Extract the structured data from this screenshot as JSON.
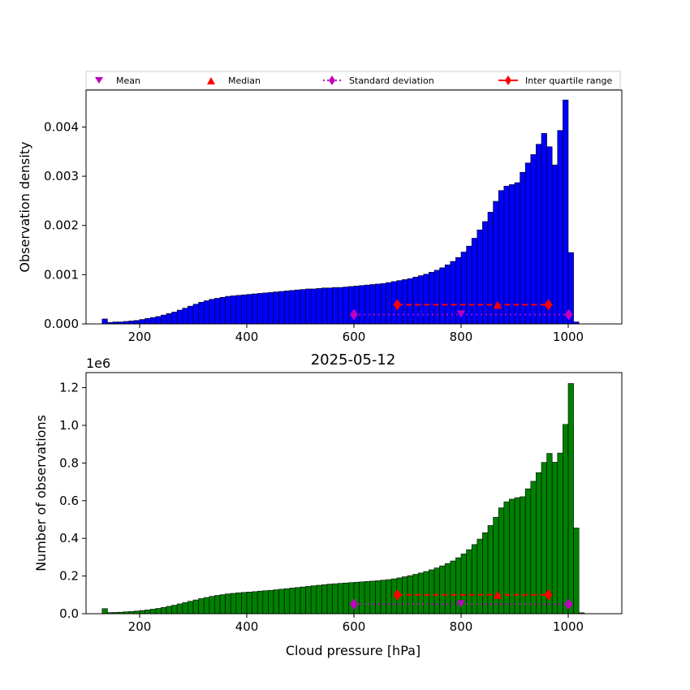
{
  "title": "2025-05-12",
  "chart_data": [
    {
      "type": "bar",
      "xlabel": "",
      "ylabel": "Observation density",
      "xlim": [
        100,
        1100
      ],
      "ylim": [
        0,
        0.00475
      ],
      "xticks": [
        200,
        400,
        600,
        800,
        1000
      ],
      "yticks": [
        0.0,
        0.001,
        0.002,
        0.003,
        0.004
      ],
      "ytick_labels": [
        "0.000",
        "0.001",
        "0.002",
        "0.003",
        "0.004"
      ],
      "bar_color": "#0000ff",
      "bin_width": 10,
      "bin_start": 130,
      "values": [
        0.0001,
        3e-05,
        4e-05,
        4e-05,
        5e-05,
        6e-05,
        7e-05,
        9e-05,
        0.00011,
        0.00013,
        0.00015,
        0.00018,
        0.00021,
        0.00024,
        0.00028,
        0.00032,
        0.00036,
        0.0004,
        0.00044,
        0.00047,
        0.0005,
        0.00052,
        0.00054,
        0.00056,
        0.00057,
        0.00058,
        0.00059,
        0.0006,
        0.00061,
        0.00062,
        0.00063,
        0.00064,
        0.00065,
        0.00066,
        0.00067,
        0.00068,
        0.00069,
        0.0007,
        0.00071,
        0.00071,
        0.00072,
        0.00073,
        0.00073,
        0.00074,
        0.00074,
        0.00075,
        0.00076,
        0.00077,
        0.00078,
        0.00079,
        0.0008,
        0.00081,
        0.00082,
        0.00084,
        0.00086,
        0.00088,
        0.0009,
        0.00092,
        0.00095,
        0.00098,
        0.00101,
        0.00105,
        0.00109,
        0.00114,
        0.0012,
        0.00127,
        0.00135,
        0.00146,
        0.00158,
        0.00174,
        0.00191,
        0.00208,
        0.00227,
        0.00249,
        0.00271,
        0.0028,
        0.00283,
        0.00287,
        0.00308,
        0.00327,
        0.00344,
        0.00365,
        0.00387,
        0.0036,
        0.00323,
        0.00393,
        0.00455,
        0.00145,
        4e-05
      ],
      "stats": {
        "mean": {
          "x": 800,
          "y": 0.00019
        },
        "median": {
          "x": 868,
          "y": 0.00039
        },
        "std": {
          "x": [
            600,
            1001
          ],
          "y": 0.00019
        },
        "iqr": {
          "x": [
            681,
            963
          ],
          "y": 0.00039
        }
      }
    },
    {
      "type": "bar",
      "title": "2025-05-12",
      "xlabel": "Cloud pressure [hPa]",
      "ylabel": "Number of observations",
      "offset_label": "1e6",
      "xlim": [
        100,
        1100
      ],
      "ylim": [
        0,
        1.28
      ],
      "xticks": [
        200,
        400,
        600,
        800,
        1000
      ],
      "yticks": [
        0.0,
        0.2,
        0.4,
        0.6,
        0.8,
        1.0,
        1.2
      ],
      "ytick_labels": [
        "0.0",
        "0.2",
        "0.4",
        "0.6",
        "0.8",
        "1.0",
        "1.2"
      ],
      "bar_color": "#008000",
      "bin_width": 10,
      "bin_start": 130,
      "values": [
        0.027,
        0.006,
        0.007,
        0.008,
        0.01,
        0.012,
        0.014,
        0.017,
        0.02,
        0.024,
        0.028,
        0.033,
        0.039,
        0.045,
        0.052,
        0.059,
        0.066,
        0.073,
        0.08,
        0.086,
        0.092,
        0.097,
        0.101,
        0.105,
        0.108,
        0.111,
        0.113,
        0.115,
        0.117,
        0.12,
        0.122,
        0.124,
        0.127,
        0.13,
        0.133,
        0.136,
        0.139,
        0.142,
        0.145,
        0.148,
        0.151,
        0.154,
        0.157,
        0.159,
        0.161,
        0.163,
        0.165,
        0.167,
        0.169,
        0.171,
        0.173,
        0.175,
        0.178,
        0.181,
        0.185,
        0.19,
        0.196,
        0.202,
        0.209,
        0.216,
        0.224,
        0.233,
        0.243,
        0.254,
        0.266,
        0.28,
        0.297,
        0.317,
        0.34,
        0.367,
        0.396,
        0.43,
        0.468,
        0.512,
        0.562,
        0.594,
        0.608,
        0.616,
        0.621,
        0.663,
        0.703,
        0.749,
        0.803,
        0.851,
        0.804,
        0.853,
        1.005,
        1.222,
        0.455,
        0.005
      ],
      "stats": {
        "mean": {
          "x": 800,
          "y": 0.05
        },
        "median": {
          "x": 868,
          "y": 0.1
        },
        "std": {
          "x": [
            600,
            1001
          ],
          "y": 0.05
        },
        "iqr": {
          "x": [
            681,
            963
          ],
          "y": 0.1
        }
      }
    }
  ],
  "legend": {
    "position": "top",
    "entries": [
      {
        "label": "Mean",
        "marker": "triangle-down",
        "color": "#bf00bf"
      },
      {
        "label": "Median",
        "marker": "triangle-up",
        "color": "#ff0000"
      },
      {
        "label": "Standard deviation",
        "marker": "diamond-dotted",
        "color": "#bf00bf"
      },
      {
        "label": "Inter quartile range",
        "marker": "diamond-dashed",
        "color": "#ff0000"
      }
    ]
  }
}
